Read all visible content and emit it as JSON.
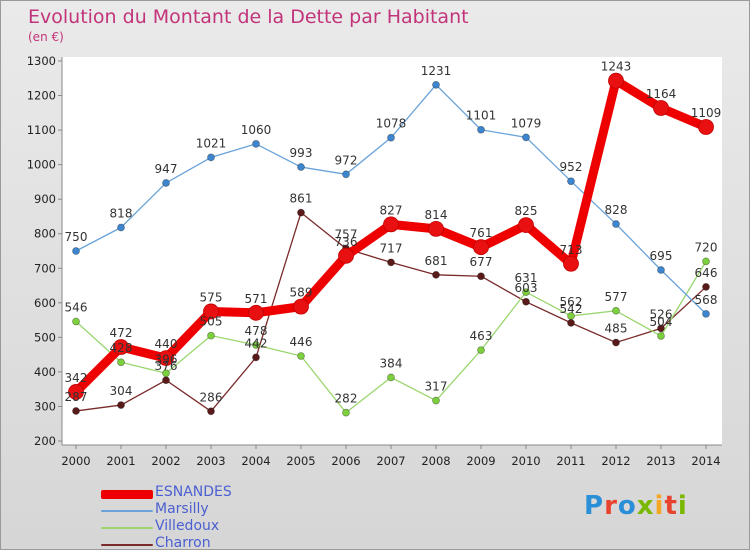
{
  "title": "Evolution du Montant de la Dette par Habitant",
  "subtitle": "(en €)",
  "logo": "Proxiti",
  "logo_colors": [
    "#2a8fd6",
    "#e8432d",
    "#2a8fd6",
    "#7ab800",
    "#f5a623",
    "#e8432d",
    "#7ab800"
  ],
  "colors": {
    "title": "#c2347a",
    "legend_text": "#4b5fd1",
    "axis": "#888888"
  },
  "chart_data": {
    "type": "line",
    "title": "Evolution du Montant de la Dette par Habitant",
    "subtitle": "(en €)",
    "x": [
      "2000",
      "2001",
      "2002",
      "2003",
      "2004",
      "2005",
      "2006",
      "2007",
      "2008",
      "2009",
      "2010",
      "2011",
      "2012",
      "2013",
      "2014"
    ],
    "y_ticks": [
      200,
      300,
      400,
      500,
      600,
      700,
      800,
      900,
      1000,
      1100,
      1200,
      1300
    ],
    "ylim": [
      200,
      1300
    ],
    "grid": false,
    "legend_position": "bottom-left",
    "series": [
      {
        "name": "ESNANDES",
        "color": "#ee0000",
        "marker": "#e81010",
        "values": [
          342,
          472,
          440,
          575,
          571,
          589,
          736,
          827,
          814,
          761,
          825,
          713,
          1243,
          1164,
          1109
        ],
        "labels": [
          "342",
          "472",
          "440",
          "575",
          "571",
          "589",
          "736",
          "827",
          "814",
          "761",
          "825",
          "713",
          "1243",
          "1164",
          "1109"
        ]
      },
      {
        "name": "Marsilly",
        "color": "#6aa3d9",
        "marker": "#3d86cf",
        "values": [
          750,
          818,
          947,
          1021,
          1060,
          993,
          972,
          1078,
          1231,
          1101,
          1079,
          952,
          828,
          695,
          568
        ],
        "labels": [
          "750",
          "818",
          "947",
          "1021",
          "1060",
          "993",
          "972",
          "1078",
          "1231",
          "1101",
          "1079",
          "952",
          "828",
          "695",
          "568"
        ]
      },
      {
        "name": "Villedoux",
        "color": "#9ad66e",
        "marker": "#7ccf3d",
        "values": [
          546,
          428,
          396,
          505,
          478,
          446,
          282,
          384,
          317,
          463,
          631,
          562,
          577,
          504,
          720
        ],
        "labels": [
          "546",
          "428",
          "396",
          "505",
          "478",
          "446",
          "282",
          "384",
          "317",
          "463",
          "631",
          "562",
          "577",
          "504",
          "720"
        ]
      },
      {
        "name": "Charron",
        "color": "#7a2a2a",
        "marker": "#5a1a1a",
        "values": [
          287,
          304,
          376,
          286,
          442,
          861,
          757,
          717,
          681,
          677,
          603,
          542,
          485,
          526,
          646
        ],
        "labels": [
          "287",
          "304",
          "376",
          "286",
          "442",
          "861",
          "757",
          "717",
          "681",
          "677",
          "603",
          "542",
          "485",
          "526",
          "646"
        ]
      }
    ]
  }
}
